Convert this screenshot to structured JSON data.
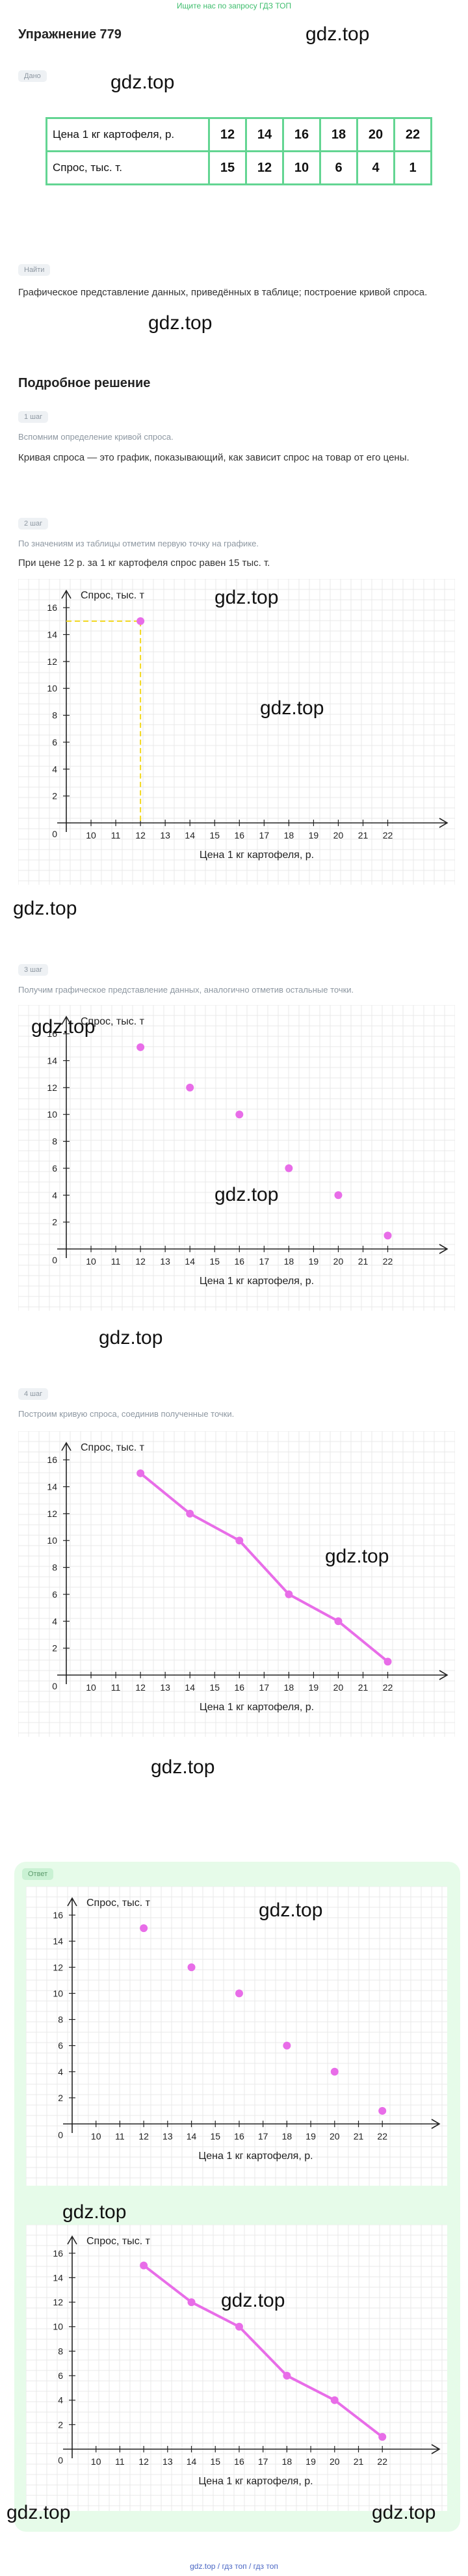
{
  "header": {
    "top_link": "Ищите нас по запросу ГДЗ ТОП",
    "title": "Упражнение 779"
  },
  "watermark": "gdz.top",
  "given": {
    "label": "Дано",
    "table": {
      "row1_label": "Цена 1 кг картофеля, р.",
      "row1_values": [
        "12",
        "14",
        "16",
        "18",
        "20",
        "22"
      ],
      "row2_label": "Спрос, тыс. т.",
      "row2_values": [
        "15",
        "12",
        "10",
        "6",
        "4",
        "1"
      ]
    }
  },
  "find": {
    "label": "Найти",
    "text": "Графическое представление данных, приведённых в таблице; построение кривой спроса."
  },
  "solution": {
    "heading": "Подробное решение",
    "steps": [
      {
        "label": "1 шаг",
        "hint": "Вспомним определение кривой спроса.",
        "text": "Кривая спроса — это график, показывающий, как зависит спрос на товар от его цены."
      },
      {
        "label": "2 шаг",
        "hint": "По значениям из таблицы отметим первую точку на графике.",
        "text": "При цене 12 р. за 1 кг картофеля спрос равен 15 тыс. т."
      },
      {
        "label": "3 шаг",
        "hint": "Получим графическое представление данных, аналогично отметив остальные точки."
      },
      {
        "label": "4 шаг",
        "hint": "Построим кривую спроса, соединив полученные точки."
      }
    ]
  },
  "answer": {
    "label": "Ответ"
  },
  "footer": {
    "text": "gdz.top  /  гдз топ  /  гдз топ"
  },
  "colors": {
    "accent": "#63d592",
    "point": "#e86de8",
    "guide": "#f2d81d",
    "answer_bg": "#e6fbe9"
  },
  "chart_data": [
    {
      "type": "scatter",
      "xlabel": "Цена 1 кг картофеля, р.",
      "ylabel": "Спрос, тыс. т",
      "x_ticks": [
        10,
        11,
        12,
        13,
        14,
        15,
        16,
        17,
        18,
        19,
        20,
        21,
        22
      ],
      "y_ticks": [
        2,
        4,
        6,
        8,
        10,
        12,
        14,
        16
      ],
      "origin_label": "0",
      "points": [
        {
          "x": 12,
          "y": 15
        }
      ],
      "guide": {
        "x": 12,
        "y": 15
      },
      "connected": false
    },
    {
      "type": "scatter",
      "xlabel": "Цена 1 кг картофеля, р.",
      "ylabel": "Спрос, тыс. т",
      "x_ticks": [
        10,
        11,
        12,
        13,
        14,
        15,
        16,
        17,
        18,
        19,
        20,
        21,
        22
      ],
      "y_ticks": [
        2,
        4,
        6,
        8,
        10,
        12,
        14,
        16
      ],
      "origin_label": "0",
      "points": [
        {
          "x": 12,
          "y": 15
        },
        {
          "x": 14,
          "y": 12
        },
        {
          "x": 16,
          "y": 10
        },
        {
          "x": 18,
          "y": 6
        },
        {
          "x": 20,
          "y": 4
        },
        {
          "x": 22,
          "y": 1
        }
      ],
      "connected": false
    },
    {
      "type": "line",
      "xlabel": "Цена 1 кг картофеля, р.",
      "ylabel": "Спрос, тыс. т",
      "x_ticks": [
        10,
        11,
        12,
        13,
        14,
        15,
        16,
        17,
        18,
        19,
        20,
        21,
        22
      ],
      "y_ticks": [
        2,
        4,
        6,
        8,
        10,
        12,
        14,
        16
      ],
      "origin_label": "0",
      "points": [
        {
          "x": 12,
          "y": 15
        },
        {
          "x": 14,
          "y": 12
        },
        {
          "x": 16,
          "y": 10
        },
        {
          "x": 18,
          "y": 6
        },
        {
          "x": 20,
          "y": 4
        },
        {
          "x": 22,
          "y": 1
        }
      ],
      "connected": true
    },
    {
      "type": "scatter",
      "xlabel": "Цена 1 кг картофеля, р.",
      "ylabel": "Спрос, тыс. т",
      "x_ticks": [
        10,
        11,
        12,
        13,
        14,
        15,
        16,
        17,
        18,
        19,
        20,
        21,
        22
      ],
      "y_ticks": [
        2,
        4,
        6,
        8,
        10,
        12,
        14,
        16
      ],
      "origin_label": "0",
      "points": [
        {
          "x": 12,
          "y": 15
        },
        {
          "x": 14,
          "y": 12
        },
        {
          "x": 16,
          "y": 10
        },
        {
          "x": 18,
          "y": 6
        },
        {
          "x": 20,
          "y": 4
        },
        {
          "x": 22,
          "y": 1
        }
      ],
      "connected": false
    },
    {
      "type": "line",
      "xlabel": "Цена 1 кг картофеля, р.",
      "ylabel": "Спрос, тыс. т",
      "x_ticks": [
        10,
        11,
        12,
        13,
        14,
        15,
        16,
        17,
        18,
        19,
        20,
        21,
        22
      ],
      "y_ticks": [
        2,
        4,
        6,
        8,
        10,
        12,
        14,
        16
      ],
      "origin_label": "0",
      "points": [
        {
          "x": 12,
          "y": 15
        },
        {
          "x": 14,
          "y": 12
        },
        {
          "x": 16,
          "y": 10
        },
        {
          "x": 18,
          "y": 6
        },
        {
          "x": 20,
          "y": 4
        },
        {
          "x": 22,
          "y": 1
        }
      ],
      "connected": true
    }
  ]
}
